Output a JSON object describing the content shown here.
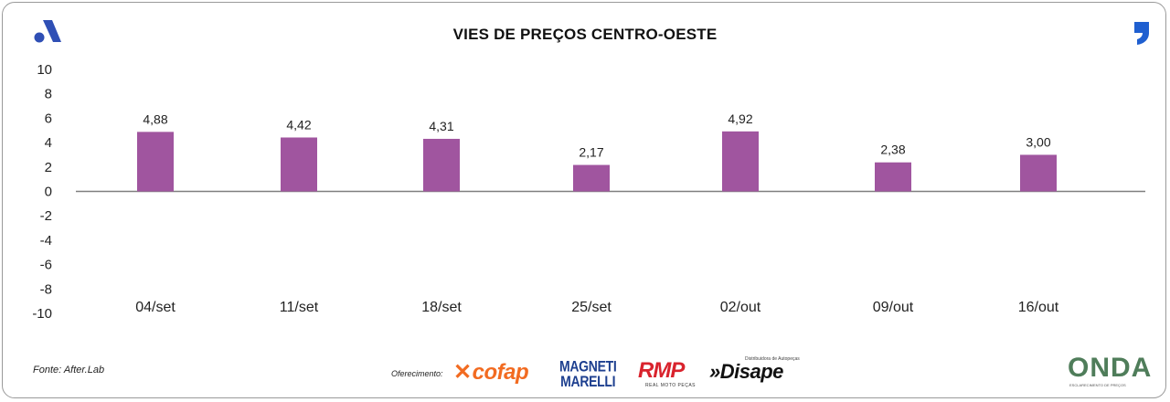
{
  "header": {
    "title": "VIES DE PREÇOS CENTRO-OESTE"
  },
  "footer": {
    "source": "Fonte: After.Lab",
    "sponsor_label": "Oferecimento:",
    "sponsors": {
      "cofap": "cofap",
      "magneti_line1": "MAGNETI",
      "magneti_line2": "MARELLI",
      "rmp": "RMP",
      "rmp_sub": "REAL MOTO PEÇAS",
      "disape": "Disape",
      "disape_sub": "Distribuidora de Autopeças"
    },
    "onda": "ONDA",
    "onda_sub": "ESCLARECIMENTO DE PREÇOS"
  },
  "colors": {
    "bar": "#a0559f",
    "axis": "#7f7f7f",
    "logo_blue": "#2f4fb5",
    "comma_blue": "#1f5fd0"
  },
  "icons": {
    "left_logo": "a-logo-icon",
    "right_logo": "comma-logo-icon"
  },
  "chart_data": {
    "type": "bar",
    "title": "VIES DE PREÇOS CENTRO-OESTE",
    "categories": [
      "04/set",
      "11/set",
      "18/set",
      "25/set",
      "02/out",
      "09/out",
      "16/out"
    ],
    "values": [
      4.88,
      4.42,
      4.31,
      2.17,
      4.92,
      2.38,
      3.0
    ],
    "data_labels": [
      "4,88",
      "4,42",
      "4,31",
      "2,17",
      "4,92",
      "2,38",
      "3,00"
    ],
    "y_ticks": [
      "10",
      "8",
      "6",
      "4",
      "2",
      "0",
      "-2",
      "-4",
      "-6",
      "-8",
      "-10"
    ],
    "ylim": [
      -10,
      10
    ],
    "xlabel": "",
    "ylabel": "",
    "grid": false,
    "legend": "none"
  }
}
